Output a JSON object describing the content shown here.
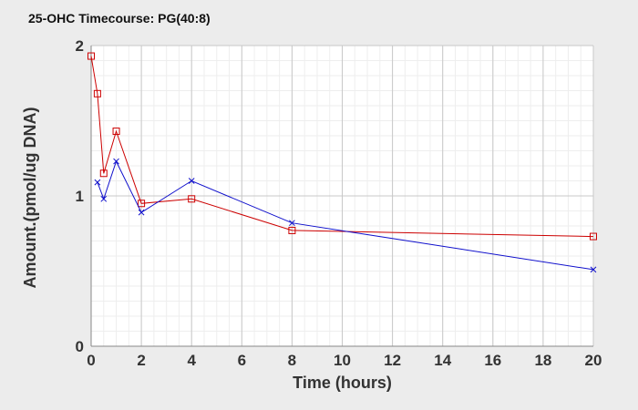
{
  "chart_data": {
    "type": "line",
    "title": "25-OHC Timecourse: PG(40:8)",
    "xlabel": "Time (hours)",
    "ylabel": "Amount.(pmol/ug DNA)",
    "xlim": [
      0,
      20
    ],
    "ylim": [
      0,
      2
    ],
    "x_ticks": [
      0,
      2,
      4,
      6,
      8,
      10,
      12,
      14,
      16,
      18,
      20
    ],
    "y_ticks": [
      0,
      1,
      2
    ],
    "x_minor_step": 0.5,
    "y_minor_step": 0.1,
    "grid": true,
    "legend": "none",
    "colors": {
      "background": "#ececec",
      "plot_background": "#ffffff",
      "major_grid": "#c8c8c8",
      "minor_grid": "#eeeeee"
    },
    "series": [
      {
        "color": "#cc0000",
        "marker": "square",
        "x": [
          0,
          0.25,
          0.5,
          1,
          2,
          4,
          8,
          20
        ],
        "values": [
          1.93,
          1.68,
          1.15,
          1.43,
          0.95,
          0.98,
          0.77,
          0.73
        ]
      },
      {
        "color": "#1010cc",
        "marker": "x",
        "x": [
          0.25,
          0.5,
          1,
          2,
          4,
          8,
          20
        ],
        "values": [
          1.09,
          0.98,
          1.23,
          0.89,
          1.1,
          0.82,
          0.51
        ]
      }
    ]
  }
}
